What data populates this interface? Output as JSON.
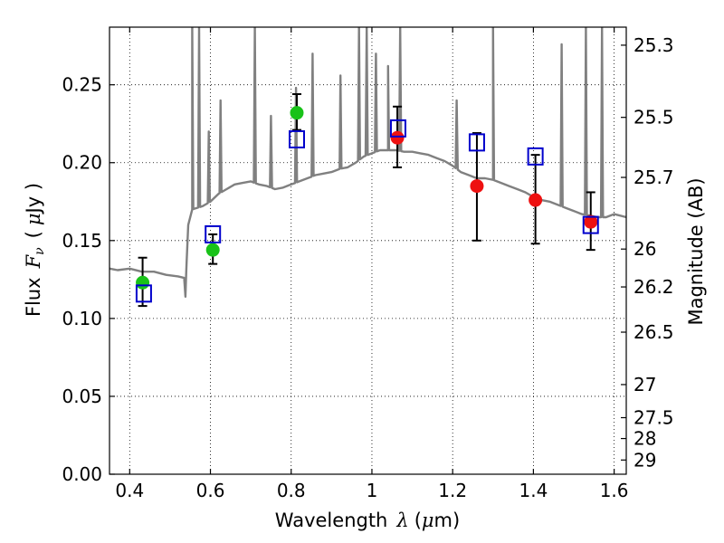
{
  "chart_data": {
    "type": "scatter",
    "title": "",
    "xlabel": "Wavelength  λ (μm)",
    "xlabel_parts": [
      "Wavelength",
      "λ",
      "(",
      "μ",
      "m)"
    ],
    "ylabel": "Flux  Fν ( μJy )",
    "ylabel_parts": [
      "Flux",
      "F",
      "ν",
      "(",
      "μ",
      "Jy )"
    ],
    "y2label": "Magnitude (AB)",
    "xlim": [
      0.35,
      1.63
    ],
    "ylim": [
      0.0,
      0.287
    ],
    "grid": true,
    "colors": {
      "spectrum": "#808080",
      "green": "#19c219",
      "red": "#ee1111",
      "model_box": "#0000cc",
      "errorbar": "#000000"
    },
    "xticks": [
      {
        "v": 0.4,
        "label": "0.4"
      },
      {
        "v": 0.6,
        "label": "0.6"
      },
      {
        "v": 0.8,
        "label": "0.8"
      },
      {
        "v": 1.0,
        "label": "1"
      },
      {
        "v": 1.2,
        "label": "1.2"
      },
      {
        "v": 1.4,
        "label": "1.4"
      },
      {
        "v": 1.6,
        "label": "1.6"
      }
    ],
    "yticks": [
      {
        "v": 0.0,
        "label": "0.00"
      },
      {
        "v": 0.05,
        "label": "0.05"
      },
      {
        "v": 0.1,
        "label": "0.10"
      },
      {
        "v": 0.15,
        "label": "0.15"
      },
      {
        "v": 0.2,
        "label": "0.20"
      },
      {
        "v": 0.25,
        "label": "0.25"
      }
    ],
    "y2ticks": [
      {
        "mag": 25.3,
        "label": "25.3"
      },
      {
        "mag": 25.5,
        "label": "25.5"
      },
      {
        "mag": 25.7,
        "label": "25.7"
      },
      {
        "mag": 26.0,
        "label": "26"
      },
      {
        "mag": 26.2,
        "label": "26.2"
      },
      {
        "mag": 26.5,
        "label": "26.5"
      },
      {
        "mag": 27.0,
        "label": "27"
      },
      {
        "mag": 27.5,
        "label": "27.5"
      },
      {
        "mag": 28.0,
        "label": "28"
      },
      {
        "mag": 29.0,
        "label": "29"
      }
    ],
    "observed_green": [
      {
        "x": 0.432,
        "y": 0.123,
        "ylo": 0.108,
        "yhi": 0.139
      },
      {
        "x": 0.606,
        "y": 0.144,
        "ylo": 0.135,
        "yhi": 0.154
      },
      {
        "x": 0.814,
        "y": 0.232,
        "ylo": 0.221,
        "yhi": 0.244
      }
    ],
    "observed_red": [
      {
        "x": 1.063,
        "y": 0.216,
        "ylo": 0.197,
        "yhi": 0.236
      },
      {
        "x": 1.26,
        "y": 0.185,
        "ylo": 0.15,
        "yhi": 0.219
      },
      {
        "x": 1.405,
        "y": 0.176,
        "ylo": 0.148,
        "yhi": 0.205
      },
      {
        "x": 1.542,
        "y": 0.162,
        "ylo": 0.144,
        "yhi": 0.181
      }
    ],
    "model_points": [
      {
        "x": 0.435,
        "y": 0.116
      },
      {
        "x": 0.606,
        "y": 0.154
      },
      {
        "x": 0.814,
        "y": 0.215
      },
      {
        "x": 1.065,
        "y": 0.222
      },
      {
        "x": 1.26,
        "y": 0.213
      },
      {
        "x": 1.405,
        "y": 0.204
      },
      {
        "x": 1.542,
        "y": 0.16
      }
    ],
    "spectrum_continuum": [
      [
        0.35,
        0.132
      ],
      [
        0.37,
        0.131
      ],
      [
        0.4,
        0.132
      ],
      [
        0.43,
        0.13
      ],
      [
        0.46,
        0.13
      ],
      [
        0.49,
        0.128
      ],
      [
        0.52,
        0.127
      ],
      [
        0.535,
        0.126
      ],
      [
        0.54,
        0.13
      ],
      [
        0.545,
        0.16
      ],
      [
        0.555,
        0.17
      ],
      [
        0.58,
        0.172
      ],
      [
        0.6,
        0.175
      ],
      [
        0.62,
        0.18
      ],
      [
        0.64,
        0.183
      ],
      [
        0.66,
        0.186
      ],
      [
        0.68,
        0.187
      ],
      [
        0.7,
        0.188
      ],
      [
        0.72,
        0.186
      ],
      [
        0.74,
        0.185
      ],
      [
        0.76,
        0.183
      ],
      [
        0.78,
        0.184
      ],
      [
        0.8,
        0.186
      ],
      [
        0.82,
        0.188
      ],
      [
        0.84,
        0.19
      ],
      [
        0.86,
        0.192
      ],
      [
        0.88,
        0.193
      ],
      [
        0.9,
        0.194
      ],
      [
        0.92,
        0.196
      ],
      [
        0.94,
        0.197
      ],
      [
        0.96,
        0.2
      ],
      [
        0.98,
        0.204
      ],
      [
        1.0,
        0.206
      ],
      [
        1.02,
        0.208
      ],
      [
        1.04,
        0.208
      ],
      [
        1.06,
        0.208
      ],
      [
        1.08,
        0.207
      ],
      [
        1.1,
        0.207
      ],
      [
        1.12,
        0.206
      ],
      [
        1.14,
        0.205
      ],
      [
        1.16,
        0.203
      ],
      [
        1.18,
        0.201
      ],
      [
        1.2,
        0.198
      ],
      [
        1.22,
        0.194
      ],
      [
        1.24,
        0.192
      ],
      [
        1.26,
        0.19
      ],
      [
        1.28,
        0.19
      ],
      [
        1.3,
        0.189
      ],
      [
        1.32,
        0.187
      ],
      [
        1.34,
        0.185
      ],
      [
        1.36,
        0.183
      ],
      [
        1.38,
        0.181
      ],
      [
        1.4,
        0.178
      ],
      [
        1.42,
        0.176
      ],
      [
        1.44,
        0.175
      ],
      [
        1.46,
        0.173
      ],
      [
        1.48,
        0.171
      ],
      [
        1.5,
        0.169
      ],
      [
        1.52,
        0.167
      ],
      [
        1.54,
        0.166
      ],
      [
        1.56,
        0.165
      ],
      [
        1.58,
        0.165
      ],
      [
        1.6,
        0.167
      ],
      [
        1.63,
        0.165
      ]
    ],
    "spectrum_dips": [
      {
        "x": 0.538,
        "y": 0.114
      }
    ],
    "emission_lines": [
      {
        "x": 0.555,
        "peak": 0.3
      },
      {
        "x": 0.572,
        "peak": 0.3
      },
      {
        "x": 0.596,
        "peak": 0.22
      },
      {
        "x": 0.625,
        "peak": 0.24
      },
      {
        "x": 0.71,
        "peak": 0.3
      },
      {
        "x": 0.75,
        "peak": 0.23
      },
      {
        "x": 0.812,
        "peak": 0.248
      },
      {
        "x": 0.853,
        "peak": 0.27
      },
      {
        "x": 0.922,
        "peak": 0.256
      },
      {
        "x": 0.968,
        "peak": 0.3
      },
      {
        "x": 0.987,
        "peak": 0.3
      },
      {
        "x": 1.01,
        "peak": 0.27
      },
      {
        "x": 1.04,
        "peak": 0.262
      },
      {
        "x": 1.07,
        "peak": 0.3
      },
      {
        "x": 1.21,
        "peak": 0.24
      },
      {
        "x": 1.3,
        "peak": 0.298
      },
      {
        "x": 1.47,
        "peak": 0.276
      },
      {
        "x": 1.53,
        "peak": 0.29
      },
      {
        "x": 1.57,
        "peak": 0.3
      }
    ]
  }
}
